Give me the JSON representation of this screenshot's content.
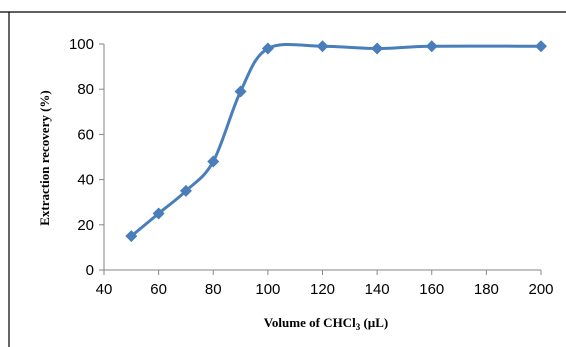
{
  "colors": {
    "series": "#4a7ebb",
    "axis": "#868686",
    "frame": "#000000"
  },
  "chart_data": {
    "type": "line",
    "smooth": true,
    "marker": "diamond",
    "title": "",
    "xlabel_main": "Volume of CHCl",
    "xlabel_sub": "3",
    "xlabel_tail": " (µL)",
    "ylabel": "Extraction recovery (%)",
    "xlim": [
      40,
      200
    ],
    "ylim": [
      0,
      100
    ],
    "xticks": [
      40,
      60,
      80,
      100,
      120,
      140,
      160,
      180,
      200
    ],
    "yticks": [
      0,
      20,
      40,
      60,
      80,
      100
    ],
    "grid": false,
    "legend": "none",
    "series": [
      {
        "x": [
          50,
          60,
          70,
          80,
          90,
          100,
          120,
          140,
          160,
          200
        ],
        "y": [
          15,
          25,
          35,
          48,
          79,
          98,
          99,
          98,
          99,
          99
        ]
      }
    ]
  }
}
